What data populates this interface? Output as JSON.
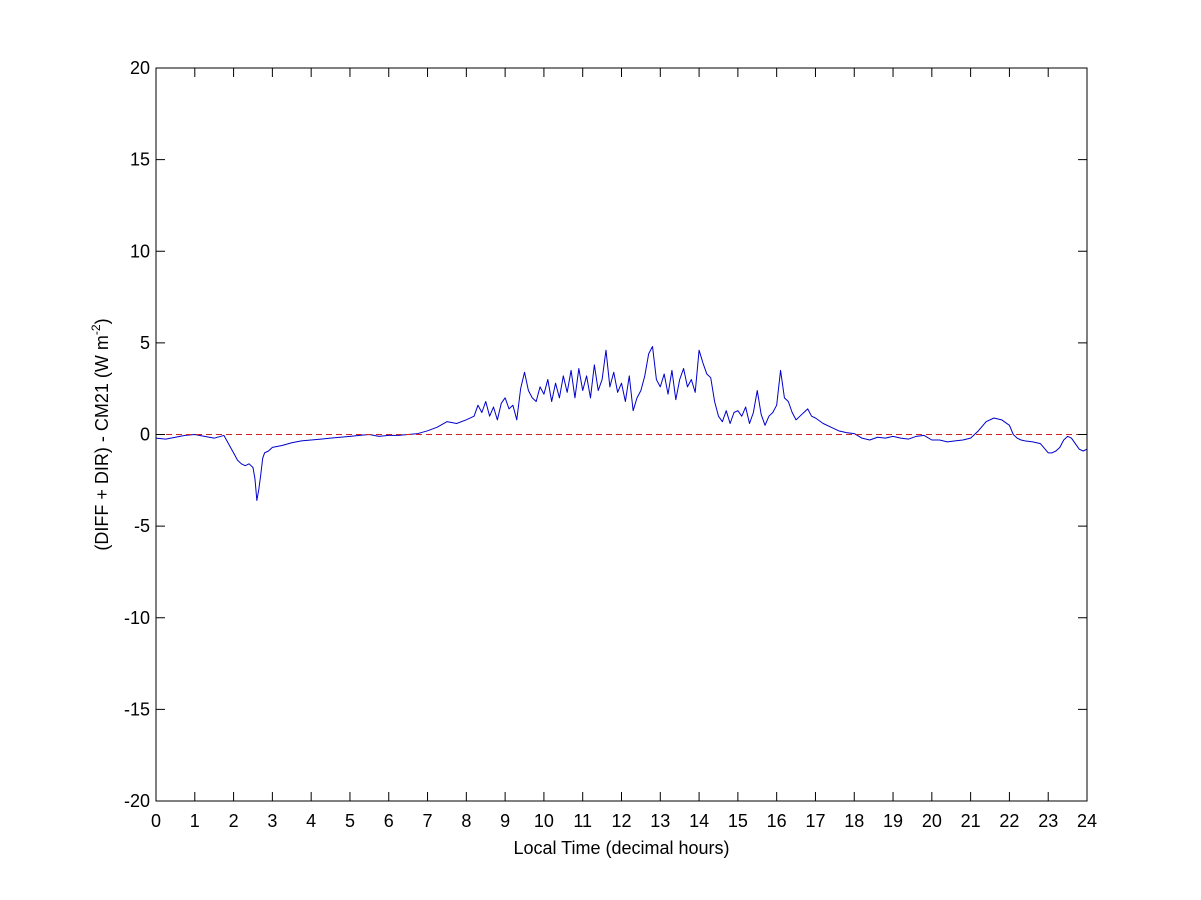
{
  "chart_data": {
    "type": "line",
    "title": "",
    "xlabel": "Local Time (decimal hours)",
    "ylabel_main": "(DIFF + DIR) - CM21 (W m",
    "ylabel_sup": "-2",
    "ylabel_close": ")",
    "xlim": [
      0,
      24
    ],
    "ylim": [
      -20,
      20
    ],
    "xticks": [
      0,
      1,
      2,
      3,
      4,
      5,
      6,
      7,
      8,
      9,
      10,
      11,
      12,
      13,
      14,
      15,
      16,
      17,
      18,
      19,
      20,
      21,
      22,
      23,
      24
    ],
    "yticks": [
      -20,
      -15,
      -10,
      -5,
      0,
      5,
      10,
      15,
      20
    ],
    "grid": false,
    "legend": "none",
    "series": [
      {
        "color": "#0000cc",
        "style": "solid",
        "x": [
          0,
          0.25,
          0.5,
          0.75,
          1,
          1.25,
          1.5,
          1.75,
          2,
          2.1,
          2.2,
          2.3,
          2.4,
          2.5,
          2.55,
          2.6,
          2.65,
          2.7,
          2.75,
          2.8,
          2.9,
          3,
          3.25,
          3.5,
          3.75,
          4,
          4.25,
          4.5,
          4.75,
          5,
          5.25,
          5.5,
          5.75,
          6,
          6.25,
          6.5,
          6.75,
          7,
          7.25,
          7.5,
          7.75,
          8,
          8.2,
          8.3,
          8.4,
          8.5,
          8.6,
          8.7,
          8.8,
          8.9,
          9,
          9.1,
          9.2,
          9.3,
          9.4,
          9.5,
          9.6,
          9.7,
          9.8,
          9.9,
          10,
          10.1,
          10.2,
          10.3,
          10.4,
          10.5,
          10.6,
          10.7,
          10.8,
          10.9,
          11,
          11.1,
          11.2,
          11.3,
          11.4,
          11.5,
          11.6,
          11.7,
          11.8,
          11.9,
          12,
          12.1,
          12.2,
          12.3,
          12.4,
          12.5,
          12.6,
          12.7,
          12.8,
          12.9,
          13,
          13.1,
          13.2,
          13.3,
          13.4,
          13.5,
          13.6,
          13.7,
          13.8,
          13.9,
          14,
          14.1,
          14.2,
          14.3,
          14.4,
          14.5,
          14.6,
          14.7,
          14.8,
          14.9,
          15,
          15.1,
          15.2,
          15.3,
          15.4,
          15.5,
          15.6,
          15.7,
          15.8,
          15.9,
          16,
          16.1,
          16.2,
          16.3,
          16.4,
          16.5,
          16.6,
          16.7,
          16.8,
          16.9,
          17,
          17.2,
          17.4,
          17.6,
          17.8,
          18,
          18.2,
          18.4,
          18.6,
          18.8,
          19,
          19.2,
          19.4,
          19.6,
          19.8,
          20,
          20.2,
          20.4,
          20.6,
          20.8,
          21,
          21.2,
          21.4,
          21.6,
          21.8,
          22,
          22.1,
          22.2,
          22.3,
          22.4,
          22.6,
          22.8,
          23,
          23.1,
          23.2,
          23.3,
          23.4,
          23.5,
          23.6,
          23.7,
          23.8,
          23.9,
          24
        ],
        "y": [
          -0.2,
          -0.25,
          -0.15,
          -0.05,
          0.0,
          -0.1,
          -0.2,
          -0.05,
          -1.0,
          -1.4,
          -1.6,
          -1.7,
          -1.6,
          -1.8,
          -2.4,
          -3.6,
          -3.0,
          -2.2,
          -1.3,
          -1.0,
          -0.9,
          -0.7,
          -0.6,
          -0.45,
          -0.35,
          -0.3,
          -0.25,
          -0.2,
          -0.15,
          -0.1,
          -0.05,
          0.0,
          -0.1,
          -0.05,
          -0.05,
          0.0,
          0.05,
          0.2,
          0.4,
          0.7,
          0.6,
          0.8,
          1.0,
          1.6,
          1.2,
          1.8,
          1.0,
          1.5,
          0.8,
          1.7,
          2.0,
          1.4,
          1.6,
          0.8,
          2.5,
          3.4,
          2.4,
          2.0,
          1.8,
          2.6,
          2.2,
          3.0,
          1.8,
          2.8,
          2.0,
          3.2,
          2.3,
          3.5,
          2.0,
          3.6,
          2.4,
          3.2,
          2.0,
          3.8,
          2.4,
          3.0,
          4.6,
          2.6,
          3.4,
          2.3,
          2.8,
          1.8,
          3.2,
          1.3,
          2.0,
          2.4,
          3.2,
          4.4,
          4.8,
          3.0,
          2.6,
          3.3,
          2.2,
          3.5,
          1.9,
          3.0,
          3.6,
          2.6,
          3.0,
          2.3,
          4.6,
          3.9,
          3.3,
          3.1,
          1.8,
          1.0,
          0.7,
          1.3,
          0.6,
          1.2,
          1.3,
          1.0,
          1.5,
          0.6,
          1.2,
          2.4,
          1.1,
          0.5,
          1.0,
          1.2,
          1.6,
          3.5,
          2.0,
          1.8,
          1.2,
          0.8,
          1.0,
          1.2,
          1.4,
          1.0,
          0.9,
          0.6,
          0.4,
          0.2,
          0.1,
          0.05,
          -0.2,
          -0.3,
          -0.15,
          -0.2,
          -0.1,
          -0.2,
          -0.25,
          -0.1,
          -0.05,
          -0.3,
          -0.3,
          -0.4,
          -0.35,
          -0.3,
          -0.2,
          0.2,
          0.7,
          0.9,
          0.8,
          0.5,
          0.0,
          -0.2,
          -0.3,
          -0.35,
          -0.4,
          -0.5,
          -1.0,
          -1.0,
          -0.9,
          -0.7,
          -0.3,
          -0.1,
          -0.2,
          -0.5,
          -0.8,
          -0.9,
          -0.8
        ]
      },
      {
        "color": "#cc2222",
        "style": "dashed",
        "x": [
          0,
          24
        ],
        "y": [
          0,
          0
        ]
      }
    ]
  }
}
